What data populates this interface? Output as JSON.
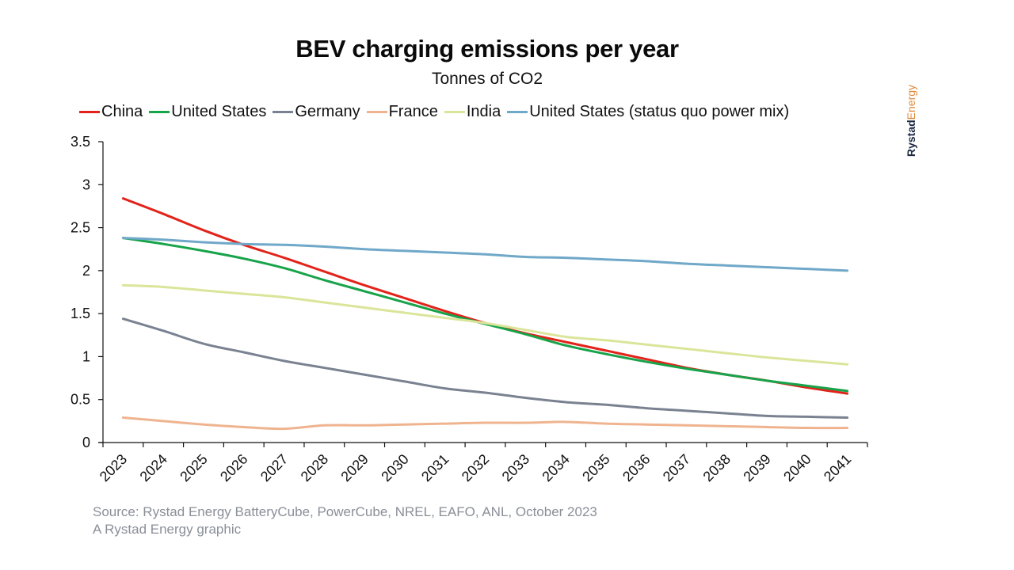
{
  "header": {
    "title": "BEV charging emissions per year",
    "subtitle": "Tonnes of CO2"
  },
  "brand": {
    "part1": "Rystad",
    "part2": "Energy"
  },
  "footer": {
    "source": "Source: Rystad Energy BatteryCube, PowerCube, NREL, EAFO, ANL, October 2023",
    "credit": "A Rystad Energy graphic"
  },
  "chart_data": {
    "type": "line",
    "title": "BEV charging emissions per year",
    "subtitle": "Tonnes of CO2",
    "xlabel": "",
    "ylabel": "",
    "ylim": [
      0,
      3.5
    ],
    "yticks": [
      "0",
      "0.5",
      "1",
      "1.5",
      "2",
      "2.5",
      "3",
      "3.5"
    ],
    "ytick_values": [
      0,
      0.5,
      1,
      1.5,
      2,
      2.5,
      3,
      3.5
    ],
    "grid": false,
    "legend_position": "top",
    "x": [
      "2023",
      "2024",
      "2025",
      "2026",
      "2027",
      "2028",
      "2029",
      "2030",
      "2031",
      "2032",
      "2033",
      "2034",
      "2035",
      "2036",
      "2037",
      "2038",
      "2039",
      "2040",
      "2041"
    ],
    "series": [
      {
        "name": "China",
        "color": "#e2231a",
        "values": [
          2.84,
          2.66,
          2.47,
          2.3,
          2.15,
          1.99,
          1.83,
          1.68,
          1.53,
          1.39,
          1.27,
          1.17,
          1.07,
          0.97,
          0.87,
          0.79,
          0.72,
          0.64,
          0.57
        ]
      },
      {
        "name": "United States",
        "color": "#17a34a",
        "values": [
          2.38,
          2.31,
          2.23,
          2.14,
          2.03,
          1.89,
          1.76,
          1.63,
          1.5,
          1.38,
          1.26,
          1.13,
          1.03,
          0.94,
          0.86,
          0.79,
          0.72,
          0.66,
          0.6
        ]
      },
      {
        "name": "Germany",
        "color": "#7a8291",
        "values": [
          1.44,
          1.3,
          1.15,
          1.05,
          0.95,
          0.87,
          0.79,
          0.71,
          0.63,
          0.58,
          0.52,
          0.47,
          0.44,
          0.4,
          0.37,
          0.34,
          0.31,
          0.3,
          0.29
        ]
      },
      {
        "name": "France",
        "color": "#efb48f",
        "values": [
          0.29,
          0.25,
          0.21,
          0.18,
          0.16,
          0.2,
          0.2,
          0.21,
          0.22,
          0.23,
          0.23,
          0.24,
          0.22,
          0.21,
          0.2,
          0.19,
          0.18,
          0.17,
          0.17
        ]
      },
      {
        "name": "India",
        "color": "#dbe59a",
        "values": [
          1.83,
          1.81,
          1.77,
          1.73,
          1.69,
          1.63,
          1.57,
          1.51,
          1.45,
          1.39,
          1.31,
          1.23,
          1.19,
          1.14,
          1.09,
          1.04,
          0.99,
          0.95,
          0.91
        ]
      },
      {
        "name": "United States (status quo power mix)",
        "color": "#6fa8c8",
        "values": [
          2.38,
          2.36,
          2.33,
          2.31,
          2.3,
          2.28,
          2.25,
          2.23,
          2.21,
          2.19,
          2.16,
          2.15,
          2.13,
          2.11,
          2.08,
          2.06,
          2.04,
          2.02,
          2.0
        ]
      }
    ]
  }
}
